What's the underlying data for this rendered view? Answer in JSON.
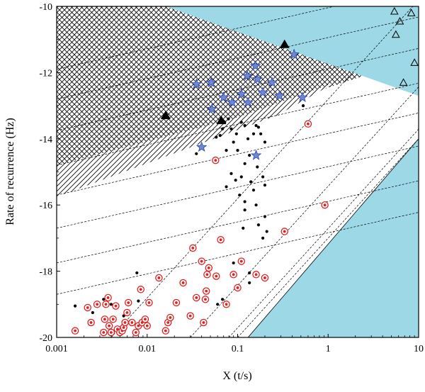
{
  "chart_data": {
    "type": "scatter",
    "xlabel": "X (t/s)",
    "ylabel": "Rate of recurrence (Hz)",
    "x_scale": "log",
    "xlim": [
      0.001,
      10
    ],
    "ylim": [
      -20,
      -10
    ],
    "x_ticks": [
      {
        "value": 0.001,
        "label": "0.001"
      },
      {
        "value": 0.01,
        "label": "0.01"
      },
      {
        "value": 0.1,
        "label": "0.1"
      },
      {
        "value": 1,
        "label": "1"
      },
      {
        "value": 10,
        "label": "10"
      }
    ],
    "y_ticks": [
      {
        "value": -10,
        "label": "-10"
      },
      {
        "value": -12,
        "label": "-12"
      },
      {
        "value": -14,
        "label": "-14"
      },
      {
        "value": -16,
        "label": "-16"
      },
      {
        "value": -18,
        "label": "-18"
      },
      {
        "value": -20,
        "label": "-20"
      }
    ],
    "colors": {
      "region_blue": "#9dd8e6",
      "circle_red": "#e02020",
      "star_fill": "#6f88d4",
      "star_stroke": "#2c47a8",
      "black": "#000000"
    },
    "regions": [
      {
        "kind": "blue-top-right",
        "boundary": [
          [
            0.016,
            -10
          ],
          [
            10,
            -12.7
          ]
        ]
      },
      {
        "kind": "blue-bottom-right",
        "boundary": [
          [
            0.13,
            -20
          ],
          [
            10,
            -14
          ]
        ]
      },
      {
        "kind": "crosshatch",
        "lower_boundary": [
          [
            0.001,
            -14.8
          ],
          [
            0.09,
            -13.4
          ],
          [
            10,
            -11.55
          ]
        ]
      },
      {
        "kind": "diagonal-hatch",
        "lower_boundary": [
          [
            0.001,
            -15.75
          ],
          [
            0.27,
            -13.3
          ],
          [
            1.2,
            -12.3
          ]
        ]
      }
    ],
    "dashed_lines": {
      "slope_decade_minus_half": [
        -11.9,
        -12.8,
        -13.75,
        -14.8,
        -15.7,
        -16.7,
        -17.75,
        -18.7
      ],
      "slope_decade_plus": [
        [
          -20,
          -19.5,
          0.004
        ],
        [
          -20,
          -16.3,
          0.03
        ],
        [
          -20,
          -13.4,
          0.08
        ],
        [
          -20,
          -12.0,
          0.1
        ]
      ]
    },
    "series": [
      {
        "name": "",
        "marker": "filled-triangle",
        "points": [
          [
            0.016,
            -13.3
          ],
          [
            0.066,
            -13.45
          ],
          [
            0.33,
            -11.15
          ]
        ]
      },
      {
        "name": "",
        "marker": "open-triangle",
        "points": [
          [
            5.4,
            -10.15
          ],
          [
            6.2,
            -10.45
          ],
          [
            5.6,
            -10.85
          ],
          [
            8.3,
            -10.2
          ],
          [
            9.0,
            -11.7
          ],
          [
            6.8,
            -12.3
          ]
        ]
      },
      {
        "name": "",
        "marker": "star",
        "points": [
          [
            0.035,
            -12.35
          ],
          [
            0.051,
            -12.3
          ],
          [
            0.07,
            -12.75
          ],
          [
            0.052,
            -13.1
          ],
          [
            0.087,
            -12.9
          ],
          [
            0.11,
            -12.65
          ],
          [
            0.128,
            -12.1
          ],
          [
            0.157,
            -11.8
          ],
          [
            0.13,
            -12.9
          ],
          [
            0.165,
            -12.2
          ],
          [
            0.19,
            -12.6
          ],
          [
            0.24,
            -12.3
          ],
          [
            0.29,
            -12.7
          ],
          [
            0.42,
            -11.45
          ],
          [
            0.52,
            -12.75
          ],
          [
            0.04,
            -14.25
          ],
          [
            0.16,
            -14.5
          ]
        ]
      },
      {
        "name": "",
        "marker": "dot",
        "points": [
          [
            0.017,
            -13.35
          ],
          [
            0.035,
            -14.45
          ],
          [
            0.058,
            -13.95
          ],
          [
            0.064,
            -13.9
          ],
          [
            0.068,
            -13.7
          ],
          [
            0.072,
            -13.5
          ],
          [
            0.079,
            -13.4
          ],
          [
            0.085,
            -13.7
          ],
          [
            0.097,
            -13.85
          ],
          [
            0.11,
            -13.5
          ],
          [
            0.12,
            -13.6
          ],
          [
            0.13,
            -14.0
          ],
          [
            0.15,
            -13.85
          ],
          [
            0.16,
            -13.6
          ],
          [
            0.17,
            -13.65
          ],
          [
            0.18,
            -13.85
          ],
          [
            0.2,
            -14.1
          ],
          [
            0.09,
            -14.1
          ],
          [
            0.1,
            -14.35
          ],
          [
            0.075,
            -14.35
          ],
          [
            0.135,
            -14.5
          ],
          [
            0.12,
            -14.75
          ],
          [
            0.165,
            -14.85
          ],
          [
            0.19,
            -15.15
          ],
          [
            0.085,
            -15.05
          ],
          [
            0.095,
            -15.25
          ],
          [
            0.11,
            -15.15
          ],
          [
            0.14,
            -15.3
          ],
          [
            0.15,
            -15.55
          ],
          [
            0.2,
            -15.4
          ],
          [
            0.075,
            -15.45
          ],
          [
            0.105,
            -15.7
          ],
          [
            0.12,
            -15.9
          ],
          [
            0.16,
            -16.0
          ],
          [
            0.2,
            -16.35
          ],
          [
            0.17,
            -16.6
          ],
          [
            0.21,
            -16.8
          ],
          [
            0.19,
            -17.0
          ],
          [
            0.115,
            -16.7
          ],
          [
            0.12,
            -16.15
          ],
          [
            0.53,
            -13.0
          ],
          [
            0.09,
            -17.75
          ],
          [
            0.135,
            -18.05
          ],
          [
            0.0016,
            -19.05
          ],
          [
            0.0025,
            -19.25
          ],
          [
            0.0077,
            -18.05
          ],
          [
            0.008,
            -18.9
          ],
          [
            0.0033,
            -18.85
          ],
          [
            0.004,
            -19.0
          ],
          [
            0.0055,
            -19.35
          ],
          [
            0.046,
            -18.55
          ],
          [
            0.068,
            -18.85
          ],
          [
            0.135,
            -18.35
          ],
          [
            0.06,
            -19.0
          ]
        ]
      },
      {
        "name": "",
        "marker": "circled-dot",
        "points": [
          [
            0.0016,
            -19.8
          ],
          [
            0.0022,
            -19.1
          ],
          [
            0.0024,
            -19.55
          ],
          [
            0.0028,
            -19.0
          ],
          [
            0.0033,
            -19.85
          ],
          [
            0.0034,
            -19.45
          ],
          [
            0.0035,
            -19.0
          ],
          [
            0.0037,
            -18.8
          ],
          [
            0.0038,
            -19.65
          ],
          [
            0.004,
            -19.85
          ],
          [
            0.0042,
            -19.45
          ],
          [
            0.0045,
            -19.05
          ],
          [
            0.0047,
            -19.75
          ],
          [
            0.005,
            -19.85
          ],
          [
            0.0053,
            -19.8
          ],
          [
            0.0055,
            -19.7
          ],
          [
            0.0057,
            -19.55
          ],
          [
            0.006,
            -19.25
          ],
          [
            0.0062,
            -18.95
          ],
          [
            0.0068,
            -19.55
          ],
          [
            0.0075,
            -19.85
          ],
          [
            0.008,
            -19.65
          ],
          [
            0.0088,
            -19.55
          ],
          [
            0.0095,
            -19.45
          ],
          [
            0.01,
            -19.65
          ],
          [
            0.0085,
            -18.55
          ],
          [
            0.0105,
            -18.95
          ],
          [
            0.0135,
            -18.2
          ],
          [
            0.016,
            -19.8
          ],
          [
            0.017,
            -19.55
          ],
          [
            0.018,
            -19.4
          ],
          [
            0.021,
            -18.95
          ],
          [
            0.025,
            -18.35
          ],
          [
            0.03,
            -19.35
          ],
          [
            0.032,
            -17.3
          ],
          [
            0.035,
            -18.8
          ],
          [
            0.04,
            -17.7
          ],
          [
            0.042,
            -19.55
          ],
          [
            0.044,
            -18.85
          ],
          [
            0.046,
            -18.1
          ],
          [
            0.048,
            -17.9
          ],
          [
            0.057,
            -14.65
          ],
          [
            0.065,
            -17.05
          ],
          [
            0.075,
            -19.0
          ],
          [
            0.09,
            -18.1
          ],
          [
            0.1,
            -18.5
          ],
          [
            0.11,
            -17.7
          ],
          [
            0.16,
            -18.1
          ],
          [
            0.2,
            -18.2
          ],
          [
            0.33,
            -16.8
          ],
          [
            0.6,
            -13.55
          ],
          [
            0.92,
            -16.0
          ],
          [
            0.045,
            -18.6
          ],
          [
            0.058,
            -18.15
          ]
        ]
      }
    ]
  }
}
